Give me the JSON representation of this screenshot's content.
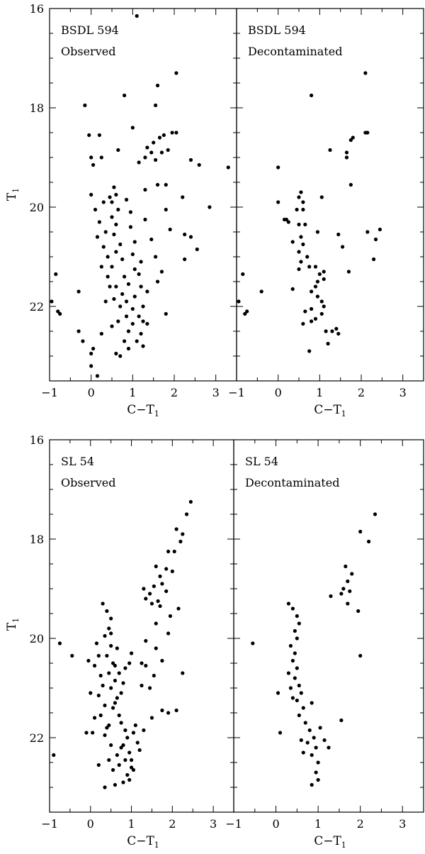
{
  "figure": {
    "xlabel_main": "C−T",
    "xlabel_sub": "1",
    "ylabel_main": "T",
    "ylabel_sub": "1"
  },
  "chart_data": [
    {
      "type": "scatter",
      "cluster": "BSDL 594",
      "label": "Observed",
      "xlim": [
        -1,
        3.5
      ],
      "ylim": [
        23.5,
        16
      ],
      "xticks": [
        "−1",
        "0",
        "1",
        "2",
        "3"
      ],
      "yticks": [
        "16",
        "18",
        "20",
        "22"
      ],
      "points": [
        [
          1.1,
          16.15
        ],
        [
          2.05,
          17.3
        ],
        [
          1.6,
          17.55
        ],
        [
          0.8,
          17.75
        ],
        [
          -0.15,
          17.95
        ],
        [
          1.55,
          17.95
        ],
        [
          1.0,
          18.4
        ],
        [
          1.65,
          18.6
        ],
        [
          1.75,
          18.55
        ],
        [
          1.95,
          18.5
        ],
        [
          2.05,
          18.5
        ],
        [
          1.5,
          18.7
        ],
        [
          1.35,
          18.8
        ],
        [
          1.45,
          18.9
        ],
        [
          1.7,
          18.9
        ],
        [
          1.85,
          18.85
        ],
        [
          1.3,
          19.0
        ],
        [
          1.55,
          19.05
        ],
        [
          2.4,
          19.05
        ],
        [
          2.6,
          19.15
        ],
        [
          3.3,
          19.2
        ],
        [
          -0.05,
          18.55
        ],
        [
          0.2,
          18.55
        ],
        [
          0.0,
          19.0
        ],
        [
          0.05,
          19.15
        ],
        [
          0.25,
          19.0
        ],
        [
          0.65,
          18.85
        ],
        [
          1.15,
          19.1
        ],
        [
          1.6,
          19.55
        ],
        [
          1.8,
          19.55
        ],
        [
          1.3,
          19.65
        ],
        [
          2.2,
          19.8
        ],
        [
          1.8,
          20.05
        ],
        [
          2.85,
          20.0
        ],
        [
          1.9,
          20.45
        ],
        [
          2.25,
          20.55
        ],
        [
          2.4,
          20.6
        ],
        [
          2.55,
          20.85
        ],
        [
          2.25,
          21.05
        ],
        [
          1.7,
          21.3
        ],
        [
          1.8,
          22.15
        ],
        [
          1.2,
          21.1
        ],
        [
          1.05,
          21.25
        ],
        [
          -0.3,
          21.7
        ],
        [
          -0.85,
          21.35
        ],
        [
          -0.75,
          22.15
        ],
        [
          -0.8,
          22.1
        ],
        [
          -0.95,
          21.9
        ],
        [
          -0.3,
          22.5
        ],
        [
          -0.2,
          22.7
        ],
        [
          0.0,
          22.95
        ],
        [
          0.05,
          22.85
        ],
        [
          0.0,
          23.2
        ],
        [
          0.15,
          23.4
        ],
        [
          0.25,
          22.55
        ],
        [
          0.6,
          22.95
        ],
        [
          0.7,
          23.0
        ],
        [
          0.5,
          22.4
        ],
        [
          1.25,
          22.8
        ],
        [
          1.1,
          22.7
        ],
        [
          0.55,
          19.6
        ],
        [
          0.6,
          19.75
        ],
        [
          0.5,
          19.9
        ],
        [
          0.65,
          20.05
        ],
        [
          0.5,
          20.2
        ],
        [
          0.6,
          20.35
        ],
        [
          0.55,
          20.55
        ],
        [
          0.7,
          20.75
        ],
        [
          0.6,
          20.9
        ],
        [
          0.75,
          21.05
        ],
        [
          0.5,
          21.2
        ],
        [
          0.8,
          21.4
        ],
        [
          0.9,
          21.55
        ],
        [
          0.75,
          21.75
        ],
        [
          0.85,
          21.9
        ],
        [
          1.0,
          22.05
        ],
        [
          0.85,
          22.2
        ],
        [
          1.0,
          22.35
        ],
        [
          0.9,
          22.5
        ],
        [
          0.8,
          22.7
        ],
        [
          0.2,
          20.3
        ],
        [
          0.35,
          20.5
        ],
        [
          0.15,
          20.6
        ],
        [
          0.3,
          20.8
        ],
        [
          0.4,
          21.0
        ],
        [
          0.25,
          21.2
        ],
        [
          0.4,
          21.4
        ],
        [
          0.6,
          21.6
        ],
        [
          0.55,
          21.85
        ],
        [
          0.7,
          22.0
        ],
        [
          0.95,
          20.4
        ],
        [
          1.05,
          20.7
        ],
        [
          1.0,
          20.95
        ],
        [
          1.15,
          21.35
        ],
        [
          1.2,
          21.6
        ],
        [
          1.05,
          21.8
        ],
        [
          1.25,
          22.0
        ],
        [
          1.15,
          22.2
        ],
        [
          1.35,
          22.35
        ],
        [
          1.2,
          22.55
        ],
        [
          0.3,
          19.9
        ],
        [
          0.0,
          19.75
        ],
        [
          0.1,
          20.05
        ],
        [
          0.45,
          19.8
        ],
        [
          0.85,
          19.85
        ],
        [
          0.95,
          20.1
        ],
        [
          1.3,
          20.25
        ],
        [
          1.45,
          20.65
        ],
        [
          1.55,
          21.0
        ],
        [
          1.6,
          21.5
        ],
        [
          1.35,
          21.7
        ],
        [
          0.45,
          21.6
        ],
        [
          0.35,
          21.9
        ],
        [
          0.65,
          22.3
        ],
        [
          0.9,
          22.85
        ],
        [
          1.25,
          22.3
        ]
      ]
    },
    {
      "type": "scatter",
      "cluster": "BSDL 594",
      "label": "Decontaminated",
      "xlim": [
        -1,
        3.5
      ],
      "ylim": [
        23.5,
        16
      ],
      "xticks": [
        "−1",
        "0",
        "1",
        "2",
        "3"
      ],
      "yticks": [],
      "points": [
        [
          2.1,
          17.3
        ],
        [
          0.8,
          17.75
        ],
        [
          2.1,
          18.5
        ],
        [
          2.15,
          18.5
        ],
        [
          1.8,
          18.6
        ],
        [
          1.75,
          18.65
        ],
        [
          1.25,
          18.85
        ],
        [
          1.65,
          18.9
        ],
        [
          1.65,
          19.0
        ],
        [
          0.0,
          19.2
        ],
        [
          1.75,
          19.55
        ],
        [
          1.05,
          19.8
        ],
        [
          0.55,
          19.7
        ],
        [
          0.5,
          19.8
        ],
        [
          0.6,
          19.9
        ],
        [
          0.0,
          19.9
        ],
        [
          0.45,
          20.05
        ],
        [
          0.6,
          20.05
        ],
        [
          0.65,
          20.35
        ],
        [
          0.5,
          20.35
        ],
        [
          0.2,
          20.25
        ],
        [
          0.25,
          20.3
        ],
        [
          0.15,
          20.25
        ],
        [
          0.55,
          20.6
        ],
        [
          0.35,
          20.7
        ],
        [
          0.6,
          20.75
        ],
        [
          0.5,
          20.9
        ],
        [
          0.7,
          21.0
        ],
        [
          0.55,
          21.1
        ],
        [
          0.75,
          21.2
        ],
        [
          0.9,
          21.2
        ],
        [
          0.5,
          21.25
        ],
        [
          0.95,
          20.5
        ],
        [
          1.45,
          20.55
        ],
        [
          1.55,
          20.8
        ],
        [
          1.1,
          21.3
        ],
        [
          1.0,
          21.35
        ],
        [
          1.1,
          21.45
        ],
        [
          0.95,
          21.5
        ],
        [
          0.9,
          21.6
        ],
        [
          0.8,
          21.7
        ],
        [
          0.95,
          21.8
        ],
        [
          1.05,
          21.9
        ],
        [
          1.1,
          22.0
        ],
        [
          0.8,
          22.05
        ],
        [
          0.65,
          22.1
        ],
        [
          1.05,
          22.15
        ],
        [
          0.9,
          22.25
        ],
        [
          0.8,
          22.3
        ],
        [
          0.6,
          22.35
        ],
        [
          1.15,
          22.5
        ],
        [
          1.3,
          22.5
        ],
        [
          1.4,
          22.45
        ],
        [
          1.45,
          22.55
        ],
        [
          1.2,
          22.75
        ],
        [
          0.75,
          22.9
        ],
        [
          0.35,
          21.65
        ],
        [
          -0.4,
          21.7
        ],
        [
          -0.85,
          21.35
        ],
        [
          -0.75,
          22.1
        ],
        [
          -0.8,
          22.15
        ],
        [
          -0.95,
          21.9
        ],
        [
          2.15,
          20.5
        ],
        [
          2.45,
          20.45
        ],
        [
          2.35,
          20.65
        ],
        [
          2.3,
          21.05
        ],
        [
          1.7,
          21.3
        ]
      ]
    },
    {
      "type": "scatter",
      "cluster": "SL 54",
      "label": "Observed",
      "xlim": [
        -1,
        3.5
      ],
      "ylim": [
        23.5,
        16
      ],
      "xticks": [
        "−1",
        "0",
        "1",
        "2",
        "3"
      ],
      "yticks": [
        "16",
        "18",
        "20",
        "22"
      ],
      "points": [
        [
          2.45,
          17.25
        ],
        [
          2.35,
          17.5
        ],
        [
          2.25,
          17.9
        ],
        [
          2.1,
          17.8
        ],
        [
          2.2,
          18.05
        ],
        [
          2.05,
          18.25
        ],
        [
          1.9,
          18.25
        ],
        [
          2.0,
          18.65
        ],
        [
          1.85,
          18.6
        ],
        [
          1.6,
          18.55
        ],
        [
          1.7,
          18.75
        ],
        [
          1.75,
          18.9
        ],
        [
          1.55,
          18.95
        ],
        [
          1.45,
          19.1
        ],
        [
          1.35,
          19.2
        ],
        [
          1.65,
          19.25
        ],
        [
          1.85,
          19.05
        ],
        [
          1.3,
          19.0
        ],
        [
          1.5,
          19.3
        ],
        [
          1.7,
          19.35
        ],
        [
          2.15,
          19.4
        ],
        [
          1.95,
          19.55
        ],
        [
          1.6,
          19.7
        ],
        [
          1.9,
          19.9
        ],
        [
          1.35,
          20.05
        ],
        [
          1.6,
          20.2
        ],
        [
          1.75,
          20.45
        ],
        [
          1.35,
          20.55
        ],
        [
          1.55,
          20.75
        ],
        [
          2.25,
          20.7
        ],
        [
          1.25,
          20.95
        ],
        [
          1.45,
          21.0
        ],
        [
          1.25,
          20.5
        ],
        [
          1.0,
          20.3
        ],
        [
          0.95,
          20.5
        ],
        [
          0.85,
          20.6
        ],
        [
          1.75,
          21.45
        ],
        [
          1.9,
          21.5
        ],
        [
          2.1,
          21.45
        ],
        [
          1.5,
          21.6
        ],
        [
          1.3,
          21.85
        ],
        [
          -0.75,
          20.1
        ],
        [
          -0.45,
          20.35
        ],
        [
          -0.05,
          20.45
        ],
        [
          0.0,
          21.1
        ],
        [
          -0.9,
          22.35
        ],
        [
          -0.1,
          21.9
        ],
        [
          0.2,
          22.55
        ],
        [
          0.35,
          23.0
        ],
        [
          0.6,
          22.95
        ],
        [
          0.8,
          22.9
        ],
        [
          0.3,
          19.3
        ],
        [
          0.4,
          19.45
        ],
        [
          0.5,
          19.6
        ],
        [
          0.45,
          19.8
        ],
        [
          0.35,
          19.95
        ],
        [
          0.5,
          20.15
        ],
        [
          0.4,
          20.35
        ],
        [
          0.55,
          20.5
        ],
        [
          0.45,
          20.7
        ],
        [
          0.6,
          20.85
        ],
        [
          0.5,
          21.0
        ],
        [
          0.65,
          21.2
        ],
        [
          0.55,
          21.4
        ],
        [
          0.7,
          21.55
        ],
        [
          0.75,
          21.7
        ],
        [
          0.85,
          21.85
        ],
        [
          0.9,
          22.0
        ],
        [
          0.8,
          22.15
        ],
        [
          0.95,
          22.3
        ],
        [
          0.85,
          22.45
        ],
        [
          1.0,
          22.6
        ],
        [
          0.9,
          22.75
        ],
        [
          1.05,
          21.9
        ],
        [
          1.15,
          22.1
        ],
        [
          1.2,
          22.25
        ],
        [
          1.0,
          22.45
        ],
        [
          0.15,
          20.1
        ],
        [
          0.2,
          20.35
        ],
        [
          0.1,
          20.55
        ],
        [
          0.25,
          20.75
        ],
        [
          0.3,
          20.95
        ],
        [
          0.2,
          21.15
        ],
        [
          0.35,
          21.35
        ],
        [
          0.25,
          21.55
        ],
        [
          0.45,
          21.75
        ],
        [
          0.35,
          21.95
        ],
        [
          0.5,
          22.15
        ],
        [
          0.65,
          22.35
        ],
        [
          0.7,
          22.55
        ],
        [
          0.6,
          21.3
        ],
        [
          0.75,
          21.1
        ],
        [
          0.8,
          20.9
        ],
        [
          0.7,
          20.7
        ],
        [
          0.6,
          20.55
        ],
        [
          0.65,
          20.2
        ],
        [
          0.5,
          19.9
        ],
        [
          0.05,
          21.9
        ],
        [
          0.1,
          21.6
        ],
        [
          0.45,
          22.45
        ],
        [
          0.55,
          22.65
        ],
        [
          1.1,
          21.75
        ],
        [
          1.05,
          22.65
        ],
        [
          0.95,
          22.85
        ],
        [
          0.75,
          22.2
        ],
        [
          0.4,
          21.8
        ]
      ]
    },
    {
      "type": "scatter",
      "cluster": "SL 54",
      "label": "Decontaminated",
      "xlim": [
        -1,
        3.5
      ],
      "ylim": [
        23.5,
        16
      ],
      "xticks": [
        "−1",
        "0",
        "1",
        "2",
        "3"
      ],
      "yticks": [],
      "points": [
        [
          2.35,
          17.5
        ],
        [
          2.0,
          17.85
        ],
        [
          2.2,
          18.05
        ],
        [
          1.65,
          18.55
        ],
        [
          1.8,
          18.7
        ],
        [
          1.7,
          18.85
        ],
        [
          1.6,
          19.0
        ],
        [
          1.75,
          19.05
        ],
        [
          1.55,
          19.1
        ],
        [
          1.3,
          19.15
        ],
        [
          1.7,
          19.3
        ],
        [
          1.95,
          19.45
        ],
        [
          2.0,
          20.35
        ],
        [
          1.55,
          21.65
        ],
        [
          -0.55,
          20.1
        ],
        [
          0.05,
          21.1
        ],
        [
          0.1,
          21.9
        ],
        [
          0.3,
          19.3
        ],
        [
          0.4,
          19.4
        ],
        [
          0.5,
          19.55
        ],
        [
          0.55,
          19.7
        ],
        [
          0.45,
          19.85
        ],
        [
          0.5,
          20.0
        ],
        [
          0.35,
          20.15
        ],
        [
          0.45,
          20.3
        ],
        [
          0.4,
          20.45
        ],
        [
          0.5,
          20.6
        ],
        [
          0.45,
          20.8
        ],
        [
          0.55,
          20.95
        ],
        [
          0.6,
          21.1
        ],
        [
          0.5,
          21.25
        ],
        [
          0.65,
          21.4
        ],
        [
          0.55,
          21.55
        ],
        [
          0.7,
          21.7
        ],
        [
          0.8,
          21.85
        ],
        [
          0.9,
          22.0
        ],
        [
          0.75,
          22.1
        ],
        [
          0.95,
          22.2
        ],
        [
          0.85,
          22.35
        ],
        [
          1.0,
          22.5
        ],
        [
          0.95,
          22.7
        ],
        [
          1.0,
          22.85
        ],
        [
          0.85,
          22.95
        ],
        [
          0.3,
          20.7
        ],
        [
          0.35,
          21.0
        ],
        [
          0.4,
          21.2
        ],
        [
          0.85,
          21.3
        ],
        [
          1.05,
          21.8
        ],
        [
          1.15,
          22.05
        ],
        [
          1.25,
          22.2
        ],
        [
          0.65,
          22.3
        ],
        [
          0.6,
          22.05
        ]
      ]
    }
  ]
}
